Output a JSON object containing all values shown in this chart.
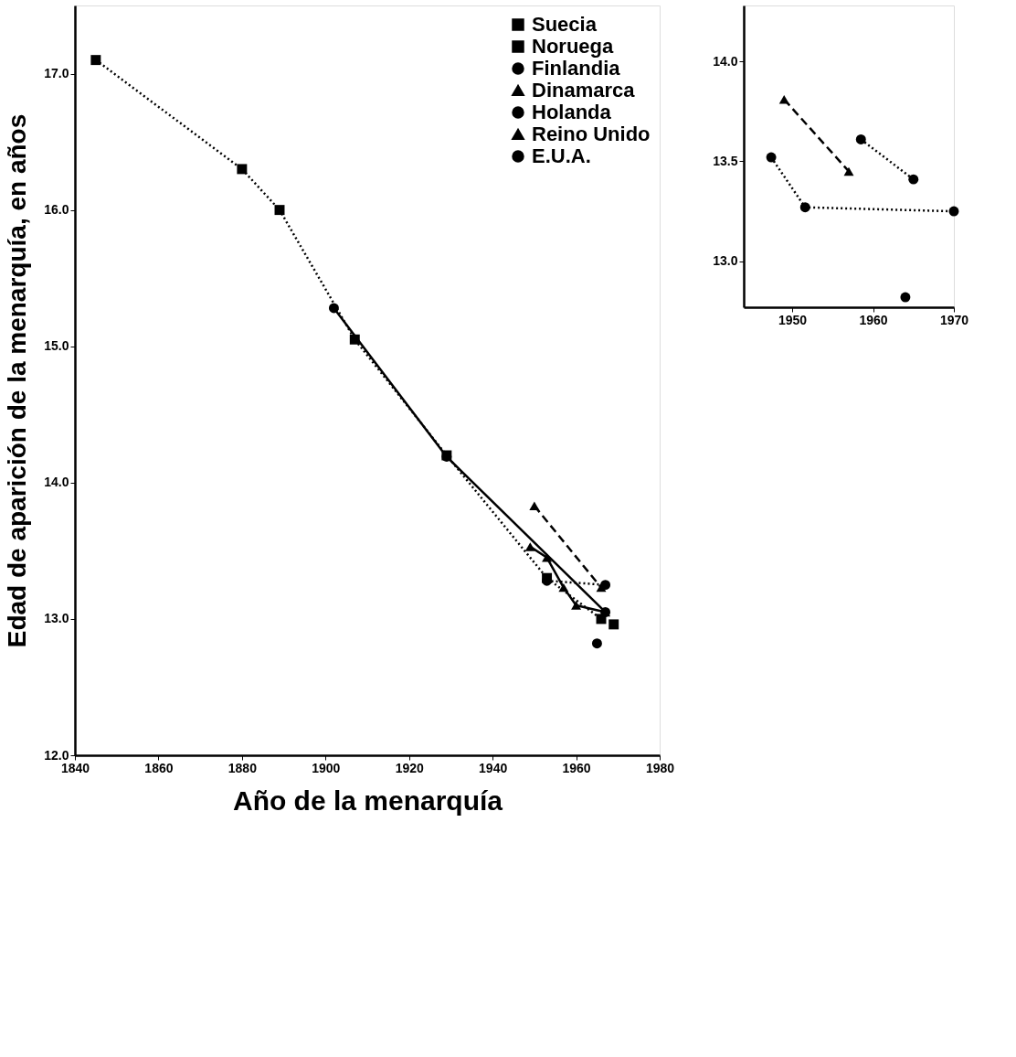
{
  "chart_data": [
    {
      "type": "line",
      "xlabel": "Año de la menarquía",
      "ylabel": "Edad de aparición de la menarquía, en años",
      "xlim": [
        1840,
        1980
      ],
      "xticks": [
        1840,
        1860,
        1880,
        1900,
        1920,
        1940,
        1960,
        {
          "value": 1980,
          "label": "1980"
        }
      ],
      "ylim": [
        12,
        17.5
      ],
      "yticks": [
        {
          "value": 12,
          "label": "12.0"
        },
        {
          "value": 13,
          "label": "13.0"
        },
        {
          "value": 14,
          "label": "14.0"
        },
        {
          "value": 15,
          "label": "15.0"
        },
        {
          "value": 16,
          "label": "16.0"
        },
        {
          "value": 17,
          "label": "17.0"
        }
      ],
      "grid": false,
      "legend": "top right",
      "series": [
        {
          "name": "Suecia",
          "color": "#000000",
          "marker": "square",
          "line_style": "solid",
          "x": [
            1969
          ],
          "values": [
            12.96
          ]
        },
        {
          "name": "Noruega",
          "color": "#000000",
          "marker": "square",
          "line_style": "dotted",
          "x": [
            1845,
            1880,
            1889,
            1907,
            1929,
            1953,
            1966
          ],
          "values": [
            17.1,
            16.3,
            16.0,
            15.05,
            14.2,
            13.3,
            13.0
          ]
        },
        {
          "name": "Finlandia",
          "color": "#000000",
          "marker": "circle",
          "line_style": "solid",
          "x": [
            1902,
            1929,
            1967
          ],
          "values": [
            15.28,
            14.19,
            13.05
          ]
        },
        {
          "name": "Dinamarca",
          "color": "#000000",
          "marker": "triangle",
          "line_style": "dashed",
          "x": [
            1950,
            1966
          ],
          "values": [
            13.83,
            13.23
          ]
        },
        {
          "name": "Holanda",
          "color": "#000000",
          "marker": "circle",
          "line_style": "dotted",
          "x": [
            1953,
            1967
          ],
          "values": [
            13.28,
            13.25
          ]
        },
        {
          "name": "Reino Unido",
          "color": "#000000",
          "marker": "triangle",
          "line_style": "solid",
          "x": [
            1949,
            1953,
            1957,
            1960,
            1967
          ],
          "values": [
            13.53,
            13.45,
            13.23,
            13.1,
            13.05
          ]
        },
        {
          "name": "E.U.A.",
          "color": "#000000",
          "marker": "circle",
          "x": [
            1965
          ],
          "values": [
            12.82
          ]
        }
      ]
    },
    {
      "type": "line",
      "xlim": [
        1944,
        1970
      ],
      "xticks": [
        1950,
        1960,
        1970
      ],
      "ylim": [
        12.77,
        14.28
      ],
      "yticks": [
        {
          "value": 13,
          "label": "13.0"
        },
        {
          "value": 13.5,
          "label": "13.5"
        },
        {
          "value": 14,
          "label": "14.0"
        }
      ],
      "grid": false,
      "series": [
        {
          "color": "#000000",
          "marker": "triangle",
          "line_style": "dashed",
          "x": [
            1949,
            1957
          ],
          "values": [
            13.81,
            13.45
          ]
        },
        {
          "color": "#000000",
          "marker": "circle",
          "line_style": "dotted",
          "x": [
            1947.4,
            1951.6,
            1970
          ],
          "values": [
            13.52,
            13.27,
            13.25
          ]
        },
        {
          "color": "#000000",
          "marker": "circle",
          "line_style": "dotted",
          "x": [
            1958.5,
            1965
          ],
          "values": [
            13.61,
            13.41
          ]
        },
        {
          "color": "#000000",
          "marker": "circle",
          "x": [
            1964
          ],
          "values": [
            12.82
          ]
        }
      ]
    }
  ]
}
